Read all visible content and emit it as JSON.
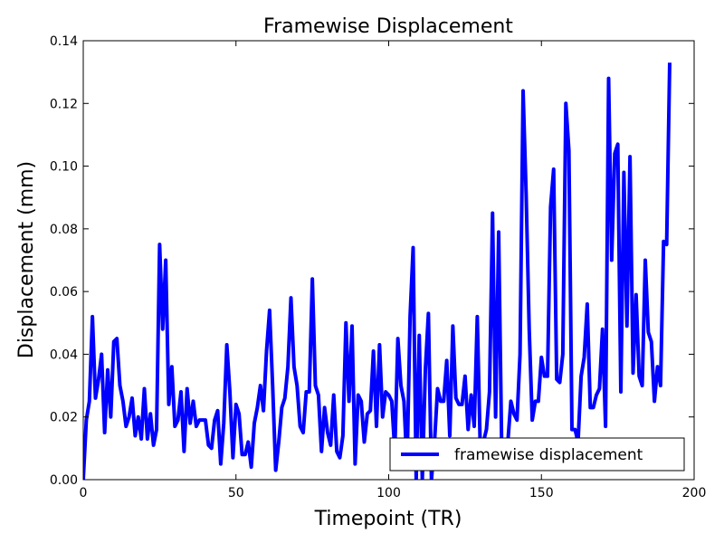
{
  "chart_data": {
    "type": "line",
    "title": "Framewise Displacement",
    "xlabel": "Timepoint (TR)",
    "ylabel": "Displacement (mm)",
    "xlim": [
      0,
      200
    ],
    "ylim": [
      0,
      0.14
    ],
    "xticks": [
      "0",
      "50",
      "100",
      "150",
      "200"
    ],
    "yticks": [
      "0.00",
      "0.02",
      "0.04",
      "0.06",
      "0.08",
      "0.10",
      "0.12",
      "0.14"
    ],
    "grid": false,
    "legend_position": "lower-right",
    "series": [
      {
        "name": "framewise displacement",
        "color": "#0000ff",
        "x": [
          0,
          1,
          2,
          3,
          4,
          5,
          6,
          7,
          8,
          9,
          10,
          11,
          12,
          13,
          14,
          15,
          16,
          17,
          18,
          19,
          20,
          21,
          22,
          23,
          24,
          25,
          26,
          27,
          28,
          29,
          30,
          31,
          32,
          33,
          34,
          35,
          36,
          37,
          38,
          39,
          40,
          41,
          42,
          43,
          44,
          45,
          46,
          47,
          48,
          49,
          50,
          51,
          52,
          53,
          54,
          55,
          56,
          57,
          58,
          59,
          60,
          61,
          62,
          63,
          64,
          65,
          66,
          67,
          68,
          69,
          70,
          71,
          72,
          73,
          74,
          75,
          76,
          77,
          78,
          79,
          80,
          81,
          82,
          83,
          84,
          85,
          86,
          87,
          88,
          89,
          90,
          91,
          92,
          93,
          94,
          95,
          96,
          97,
          98,
          99,
          100,
          101,
          102,
          103,
          104,
          105,
          106,
          107,
          108,
          109,
          110,
          111,
          112,
          113,
          114,
          115,
          116,
          117,
          118,
          119,
          120,
          121,
          122,
          123,
          124,
          125,
          126,
          127,
          128,
          129,
          130,
          131,
          132,
          133,
          134,
          135,
          136,
          137,
          138,
          139,
          140,
          141,
          142,
          143,
          144,
          145,
          146,
          147,
          148,
          149,
          150,
          151,
          152,
          153,
          154,
          155,
          156,
          157,
          158,
          159,
          160,
          161,
          162,
          163,
          164,
          165,
          166,
          167,
          168,
          169,
          170,
          171,
          172,
          173,
          174,
          175,
          176,
          177,
          178,
          179,
          180,
          181,
          182,
          183,
          184,
          185,
          186,
          187,
          188,
          189,
          190,
          191,
          192
        ],
        "y": [
          0.0,
          0.019,
          0.025,
          0.052,
          0.026,
          0.032,
          0.04,
          0.015,
          0.035,
          0.02,
          0.044,
          0.045,
          0.03,
          0.025,
          0.017,
          0.02,
          0.026,
          0.014,
          0.02,
          0.013,
          0.029,
          0.013,
          0.021,
          0.011,
          0.016,
          0.075,
          0.048,
          0.07,
          0.024,
          0.036,
          0.017,
          0.019,
          0.028,
          0.009,
          0.029,
          0.018,
          0.025,
          0.017,
          0.019,
          0.019,
          0.019,
          0.011,
          0.01,
          0.019,
          0.022,
          0.005,
          0.018,
          0.043,
          0.028,
          0.007,
          0.024,
          0.021,
          0.008,
          0.008,
          0.012,
          0.004,
          0.018,
          0.023,
          0.03,
          0.022,
          0.041,
          0.054,
          0.03,
          0.003,
          0.012,
          0.023,
          0.026,
          0.036,
          0.058,
          0.036,
          0.03,
          0.017,
          0.015,
          0.028,
          0.028,
          0.064,
          0.03,
          0.027,
          0.009,
          0.023,
          0.015,
          0.011,
          0.027,
          0.009,
          0.007,
          0.014,
          0.05,
          0.025,
          0.049,
          0.005,
          0.027,
          0.025,
          0.012,
          0.021,
          0.022,
          0.041,
          0.017,
          0.043,
          0.02,
          0.028,
          0.027,
          0.025,
          0.009,
          0.045,
          0.03,
          0.025,
          0.004,
          0.052,
          0.074,
          0.0,
          0.046,
          0.0,
          0.035,
          0.053,
          0.0,
          0.012,
          0.029,
          0.025,
          0.025,
          0.038,
          0.014,
          0.049,
          0.026,
          0.024,
          0.024,
          0.033,
          0.016,
          0.027,
          0.017,
          0.052,
          0.009,
          0.012,
          0.016,
          0.028,
          0.085,
          0.02,
          0.079,
          0.01,
          0.004,
          0.012,
          0.025,
          0.021,
          0.019,
          0.04,
          0.124,
          0.091,
          0.048,
          0.019,
          0.025,
          0.025,
          0.039,
          0.033,
          0.033,
          0.087,
          0.099,
          0.032,
          0.031,
          0.04,
          0.12,
          0.105,
          0.016,
          0.016,
          0.012,
          0.033,
          0.039,
          0.056,
          0.023,
          0.023,
          0.027,
          0.029,
          0.048,
          0.017,
          0.128,
          0.07,
          0.104,
          0.107,
          0.028,
          0.098,
          0.049,
          0.103,
          0.034,
          0.059,
          0.033,
          0.03,
          0.07,
          0.047,
          0.044,
          0.025,
          0.036,
          0.03,
          0.076,
          0.075,
          0.133
        ]
      }
    ]
  }
}
